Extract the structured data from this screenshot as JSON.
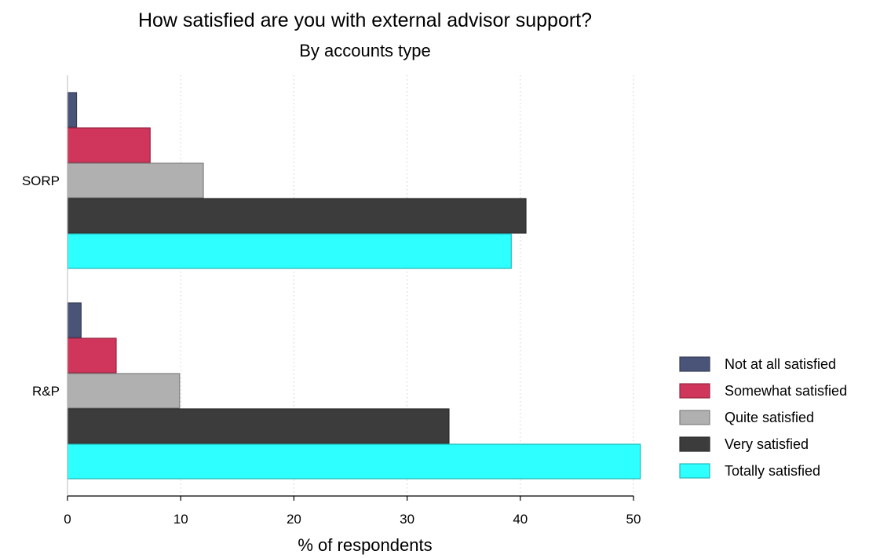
{
  "chart_data": {
    "type": "bar",
    "orientation": "horizontal",
    "title": "How satisfied are you with external advisor support?",
    "subtitle": "By accounts type",
    "xlabel": "% of respondents",
    "ylabel": "",
    "xlim": [
      0,
      50
    ],
    "xticks": [
      "0",
      "10",
      "20",
      "30",
      "40",
      "50"
    ],
    "grid": "vertical dotted",
    "legend_position": "right",
    "categories": [
      "SORP",
      "R&P"
    ],
    "series": [
      {
        "name": "Not at all satisfied",
        "color": "#4a5478",
        "values": [
          0.8,
          1.2
        ]
      },
      {
        "name": "Somewhat satisfied",
        "color": "#d0365c",
        "values": [
          7.3,
          4.3
        ]
      },
      {
        "name": "Quite satisfied",
        "color": "#b0b0b0",
        "values": [
          12.0,
          9.9
        ]
      },
      {
        "name": "Very satisfied",
        "color": "#3c3c3c",
        "values": [
          40.5,
          33.7
        ]
      },
      {
        "name": "Totally satisfied",
        "color": "#2effff",
        "values": [
          39.2,
          50.6
        ]
      }
    ]
  }
}
